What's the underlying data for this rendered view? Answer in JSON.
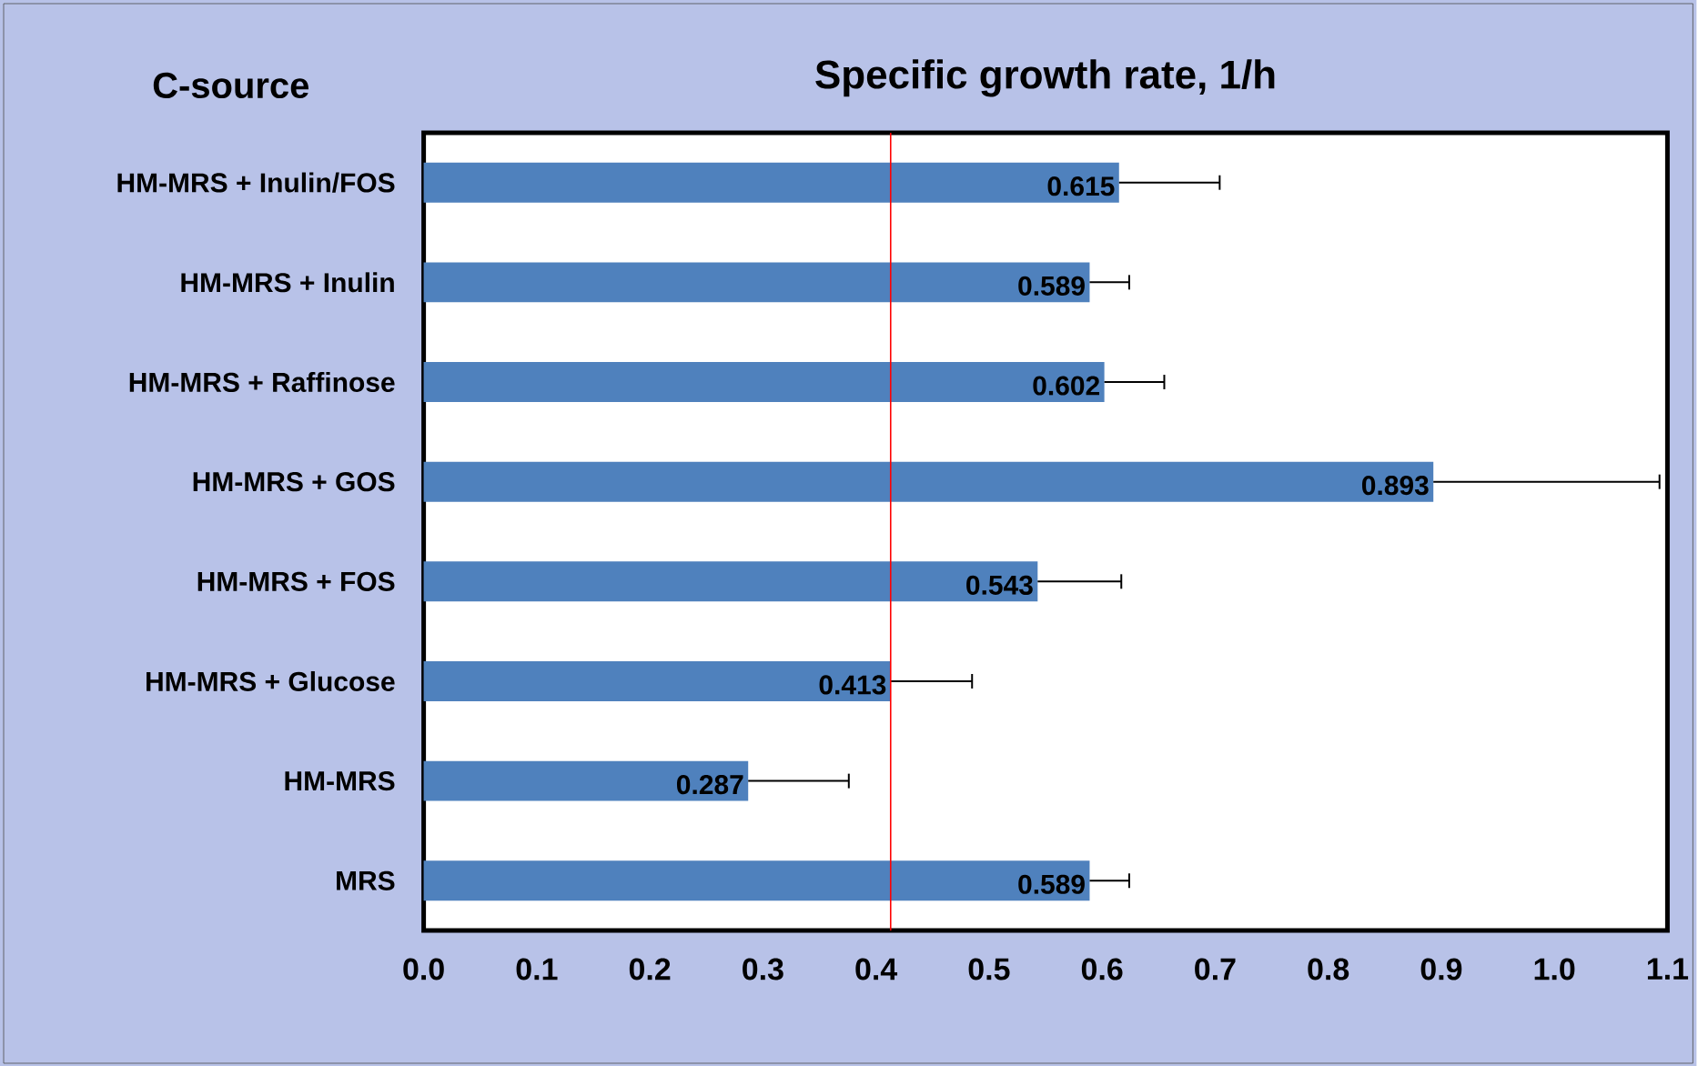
{
  "chart_data": {
    "type": "bar",
    "orientation": "horizontal",
    "title": "Specific growth rate, 1/h",
    "annotations": [
      "C-source"
    ],
    "categories": [
      "HM-MRS + Inulin/FOS",
      "HM-MRS + Inulin",
      "HM-MRS + Raffinose",
      "HM-MRS + GOS",
      "HM-MRS + FOS",
      "HM-MRS + Glucose",
      "HM-MRS",
      "MRS"
    ],
    "values": [
      0.615,
      0.589,
      0.602,
      0.893,
      0.543,
      0.413,
      0.287,
      0.589
    ],
    "errors": [
      0.089,
      0.035,
      0.053,
      0.2,
      0.074,
      0.072,
      0.089,
      0.035
    ],
    "color": "#4f81bd",
    "data_labels": true,
    "xlim": [
      0,
      1.1
    ],
    "xticks": [
      {
        "value": 0,
        "label": "0.0"
      },
      0.1,
      0.2,
      0.3,
      0.4,
      0.5,
      0.6,
      0.7,
      0.8,
      0.9,
      {
        "value": 1,
        "label": "1.0"
      },
      1.1
    ],
    "ref_lines": [
      {
        "axis": "x",
        "value": 0.413,
        "color": "#ff0000"
      }
    ]
  }
}
